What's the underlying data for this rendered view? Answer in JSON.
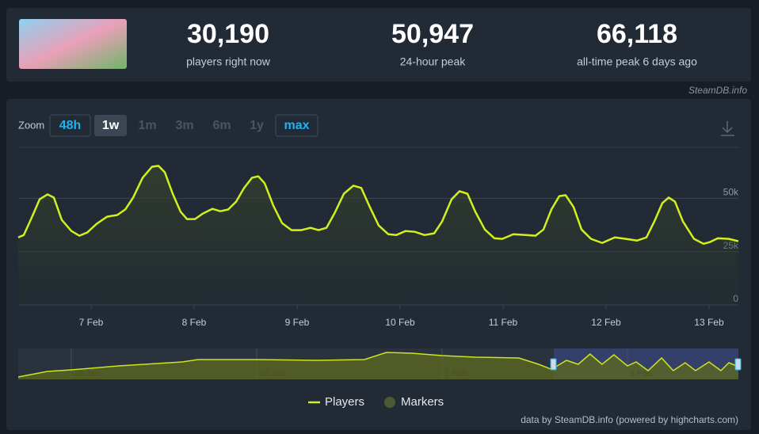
{
  "header": {
    "stats": [
      {
        "value": "30,190",
        "label": "players right now"
      },
      {
        "value": "50,947",
        "label": "24-hour peak"
      },
      {
        "value": "66,118",
        "label": "all-time peak 6 days ago"
      }
    ],
    "source": "SteamDB.info"
  },
  "zoom": {
    "label": "Zoom",
    "options": [
      {
        "label": "48h",
        "state": "enabled"
      },
      {
        "label": "1w",
        "state": "active"
      },
      {
        "label": "1m",
        "state": "disabled"
      },
      {
        "label": "3m",
        "state": "disabled"
      },
      {
        "label": "6m",
        "state": "disabled"
      },
      {
        "label": "1y",
        "state": "disabled"
      },
      {
        "label": "max",
        "state": "enabled"
      }
    ]
  },
  "chart_data": [
    {
      "type": "area",
      "x": [
        6.292,
        6.346,
        6.423,
        6.5,
        6.577,
        6.638,
        6.715,
        6.808,
        6.885,
        6.962,
        7.054,
        7.154,
        7.254,
        7.331,
        7.408,
        7.5,
        7.592,
        7.654,
        7.715,
        7.792,
        7.869,
        7.931,
        8.008,
        8.085,
        8.177,
        8.254,
        8.331,
        8.408,
        8.485,
        8.562,
        8.623,
        8.685,
        8.769,
        8.854,
        8.946,
        9.038,
        9.131,
        9.208,
        9.285,
        9.362,
        9.454,
        9.546,
        9.623,
        9.7,
        9.792,
        9.885,
        9.962,
        10.054,
        10.146,
        10.238,
        10.331,
        10.408,
        10.5,
        10.577,
        10.654,
        10.731,
        10.823,
        10.915,
        10.992,
        11.1,
        11.223,
        11.315,
        11.392,
        11.469,
        11.546,
        11.608,
        11.685,
        11.762,
        11.854,
        11.962,
        12.085,
        12.192,
        12.3,
        12.392,
        12.469,
        12.546,
        12.608,
        12.669,
        12.746,
        12.854,
        12.946,
        13.008,
        13.085,
        13.192,
        13.285
      ],
      "series": [
        {
          "name": "Players",
          "color": "#d3ef1f",
          "values": [
            31700,
            32800,
            41000,
            49600,
            51900,
            50400,
            39900,
            34700,
            32500,
            34000,
            38100,
            41400,
            42200,
            44800,
            50400,
            59700,
            64900,
            65300,
            62300,
            52200,
            43700,
            40300,
            40300,
            42900,
            45100,
            44000,
            44800,
            48500,
            54900,
            59700,
            60400,
            57100,
            46600,
            38400,
            35100,
            35100,
            36200,
            35100,
            36200,
            42900,
            52200,
            56000,
            54900,
            46600,
            37300,
            33200,
            32800,
            34700,
            34300,
            32800,
            33600,
            39200,
            49600,
            53400,
            52200,
            43700,
            35400,
            31300,
            31000,
            33200,
            32800,
            32500,
            35400,
            44800,
            51100,
            51500,
            45900,
            35400,
            31000,
            29100,
            31700,
            31000,
            30200,
            31700,
            39200,
            47800,
            50400,
            48500,
            39200,
            31000,
            28700,
            29500,
            31300,
            31000,
            29900
          ]
        }
      ],
      "markers": {
        "name": "Markers",
        "color": "#4b5a2f"
      },
      "xlim": [
        6.292,
        13.285
      ],
      "xticks": [
        {
          "value": 7,
          "label": "7 Feb"
        },
        {
          "value": 8,
          "label": "8 Feb"
        },
        {
          "value": 9,
          "label": "9 Feb"
        },
        {
          "value": 10,
          "label": "10 Feb"
        },
        {
          "value": 11,
          "label": "11 Feb"
        },
        {
          "value": 12,
          "label": "12 Feb"
        },
        {
          "value": 13,
          "label": "13 Feb"
        }
      ],
      "ylim": [
        0,
        74000
      ],
      "yticks": [
        0,
        {
          "value": 25000,
          "label": "25k"
        },
        {
          "value": 50000,
          "label": "50k"
        }
      ],
      "grid": true,
      "credits": "data by SteamDB.info (powered by highcharts.com)"
    },
    {
      "type": "navigator",
      "x": [
        17.0,
        18.1,
        19,
        20.8,
        23.19,
        23.79,
        26,
        28.27,
        30.07,
        30.9,
        31.86,
        33,
        34.26,
        35.9,
        36.65,
        37.1,
        37.25,
        37.7,
        38.14,
        38.59,
        39.04,
        39.49,
        40,
        40.33,
        40.78,
        41.29,
        41.73,
        42.18,
        42.57,
        43.08,
        43.53,
        43.83,
        44.19
      ],
      "values": [
        17000,
        27500,
        30500,
        38000,
        45500,
        50000,
        50000,
        48500,
        50000,
        63500,
        62000,
        57500,
        54500,
        53000,
        41000,
        32000,
        35000,
        48500,
        41000,
        60500,
        41000,
        59000,
        38000,
        45500,
        29000,
        53000,
        29000,
        44000,
        29000,
        45500,
        29000,
        44000,
        36500
      ],
      "color": "#cbe51f",
      "xlim": [
        17.0,
        44.19
      ],
      "xticks": [
        {
          "value": 19,
          "label": "19 Jan"
        },
        {
          "value": 26,
          "label": "26 Jan"
        },
        {
          "value": 33,
          "label": "2 Feb"
        },
        {
          "value": 40,
          "label": "9 Feb"
        }
      ],
      "ylim": [
        12500,
        71000
      ]
    }
  ]
}
